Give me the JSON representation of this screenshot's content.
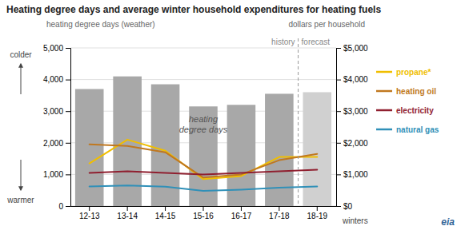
{
  "chart_data": {
    "type": "bar",
    "title": "Heating degree days and average winter household expenditures for heating fuels",
    "y_label": "heating degree days (weather)",
    "y2_label": "dollars per household",
    "x_label": "winters",
    "categories": [
      "12-13",
      "13-14",
      "14-15",
      "15-16",
      "16-17",
      "17-18",
      "18-19"
    ],
    "series": [
      {
        "name": "heating\ndegree days",
        "type": "bar",
        "colors": [
          "#a8a8a8",
          "#a8a8a8",
          "#a8a8a8",
          "#a8a8a8",
          "#a8a8a8",
          "#a8a8a8",
          "#d0d0d0"
        ],
        "values": [
          3700,
          4100,
          3850,
          3150,
          3200,
          3550,
          3600
        ]
      },
      {
        "name": "propane*",
        "type": "line",
        "axis": "y2",
        "color": "#f0be00",
        "values": [
          1350,
          2100,
          1750,
          850,
          950,
          1550,
          1550
        ]
      },
      {
        "name": "heating oil",
        "type": "line",
        "axis": "y2",
        "color": "#c07820",
        "values": [
          1950,
          1900,
          1700,
          900,
          1000,
          1450,
          1650
        ]
      },
      {
        "name": "electricity",
        "type": "line",
        "axis": "y2",
        "color": "#902030",
        "values": [
          1050,
          1100,
          1050,
          1000,
          1050,
          1100,
          1150
        ]
      },
      {
        "name": "natural gas",
        "type": "line",
        "axis": "y2",
        "color": "#3090b8",
        "values": [
          620,
          650,
          610,
          480,
          520,
          580,
          620
        ]
      }
    ],
    "ylim": [
      0,
      5000
    ],
    "yticks": [
      0,
      {
        "value": 1000,
        "label": "1,000"
      },
      {
        "value": 2000,
        "label": "2,000"
      },
      {
        "value": 3000,
        "label": "3,000"
      },
      {
        "value": 4000,
        "label": "4,000"
      },
      {
        "value": 5000,
        "label": "5,000"
      }
    ],
    "y2lim": [
      0,
      5000
    ],
    "y2ticks": [
      {
        "value": 0,
        "label": "$0"
      },
      {
        "value": 1000,
        "label": "$1,000"
      },
      {
        "value": 2000,
        "label": "$2,000"
      },
      {
        "value": 3000,
        "label": "$3,000"
      },
      {
        "value": 4000,
        "label": "$4,000"
      },
      {
        "value": 5000,
        "label": "$5,000"
      }
    ],
    "grid": true,
    "legend": "right",
    "annotations": [
      {
        "text": "history",
        "x": "17-18"
      },
      {
        "text": "forecast",
        "x": "18-19"
      },
      {
        "text": "colder"
      },
      {
        "text": "warmer"
      },
      {
        "text": "eia"
      }
    ]
  }
}
